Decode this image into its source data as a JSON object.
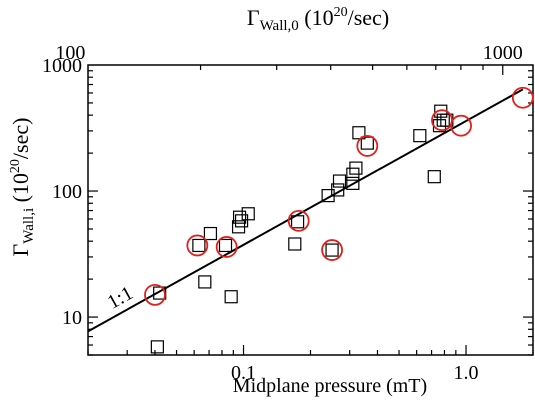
{
  "chart_data": {
    "type": "scatter",
    "xlabel": "Midplane pressure (mT)",
    "ylabel_main": "Γ",
    "ylabel_sub": "Wall,i",
    "ylabel_units_open": " (10",
    "ylabel_units_exp": "20",
    "ylabel_units_close": "/sec)",
    "top_label_main": "Γ",
    "top_label_sub": "Wall,0",
    "top_label_units_open": " (10",
    "top_label_units_exp": "20",
    "top_label_units_close": "/sec)",
    "x_scale": "log",
    "y_scale": "log",
    "xlim": [
      0.02,
      2.0
    ],
    "ylim": [
      5,
      1000
    ],
    "x_ticks": [
      {
        "value": 0.1,
        "label": "0.1"
      },
      {
        "value": 1.0,
        "label": "1.0"
      }
    ],
    "y_ticks": [
      {
        "value": 10,
        "label": "10"
      },
      {
        "value": 100,
        "label": "100"
      },
      {
        "value": 1000,
        "label": "1000"
      }
    ],
    "top_axis": {
      "scale": "log",
      "ticks": [
        {
          "value": 100,
          "label": "100"
        },
        {
          "value": 1000,
          "label": "1000"
        }
      ]
    },
    "reference_line": {
      "label": "1:1",
      "from": [
        0.02,
        7.7
      ],
      "to": [
        1.8,
        640
      ]
    },
    "series": [
      {
        "marker": "square",
        "color": "#000000",
        "points": [
          [
            0.041,
            5.8
          ],
          [
            0.042,
            15.5
          ],
          [
            0.063,
            37
          ],
          [
            0.067,
            19
          ],
          [
            0.071,
            46
          ],
          [
            0.083,
            37
          ],
          [
            0.088,
            14.5
          ],
          [
            0.095,
            52
          ],
          [
            0.096,
            62
          ],
          [
            0.098,
            58
          ],
          [
            0.105,
            66
          ],
          [
            0.17,
            38
          ],
          [
            0.175,
            57
          ],
          [
            0.24,
            92
          ],
          [
            0.25,
            34
          ],
          [
            0.265,
            102
          ],
          [
            0.27,
            120
          ],
          [
            0.31,
            115
          ],
          [
            0.31,
            136
          ],
          [
            0.32,
            152
          ],
          [
            0.33,
            290
          ],
          [
            0.36,
            240
          ],
          [
            0.62,
            275
          ],
          [
            0.72,
            130
          ],
          [
            0.76,
            330
          ],
          [
            0.77,
            430
          ],
          [
            0.79,
            365
          ],
          [
            0.82,
            365
          ]
        ]
      },
      {
        "marker": "circle",
        "color": "#e0201b",
        "points": [
          [
            0.04,
            15
          ],
          [
            0.062,
            37
          ],
          [
            0.084,
            36
          ],
          [
            0.177,
            58
          ],
          [
            0.25,
            34
          ],
          [
            0.36,
            228
          ],
          [
            0.78,
            365
          ],
          [
            0.95,
            330
          ],
          [
            1.8,
            550
          ]
        ]
      }
    ]
  }
}
